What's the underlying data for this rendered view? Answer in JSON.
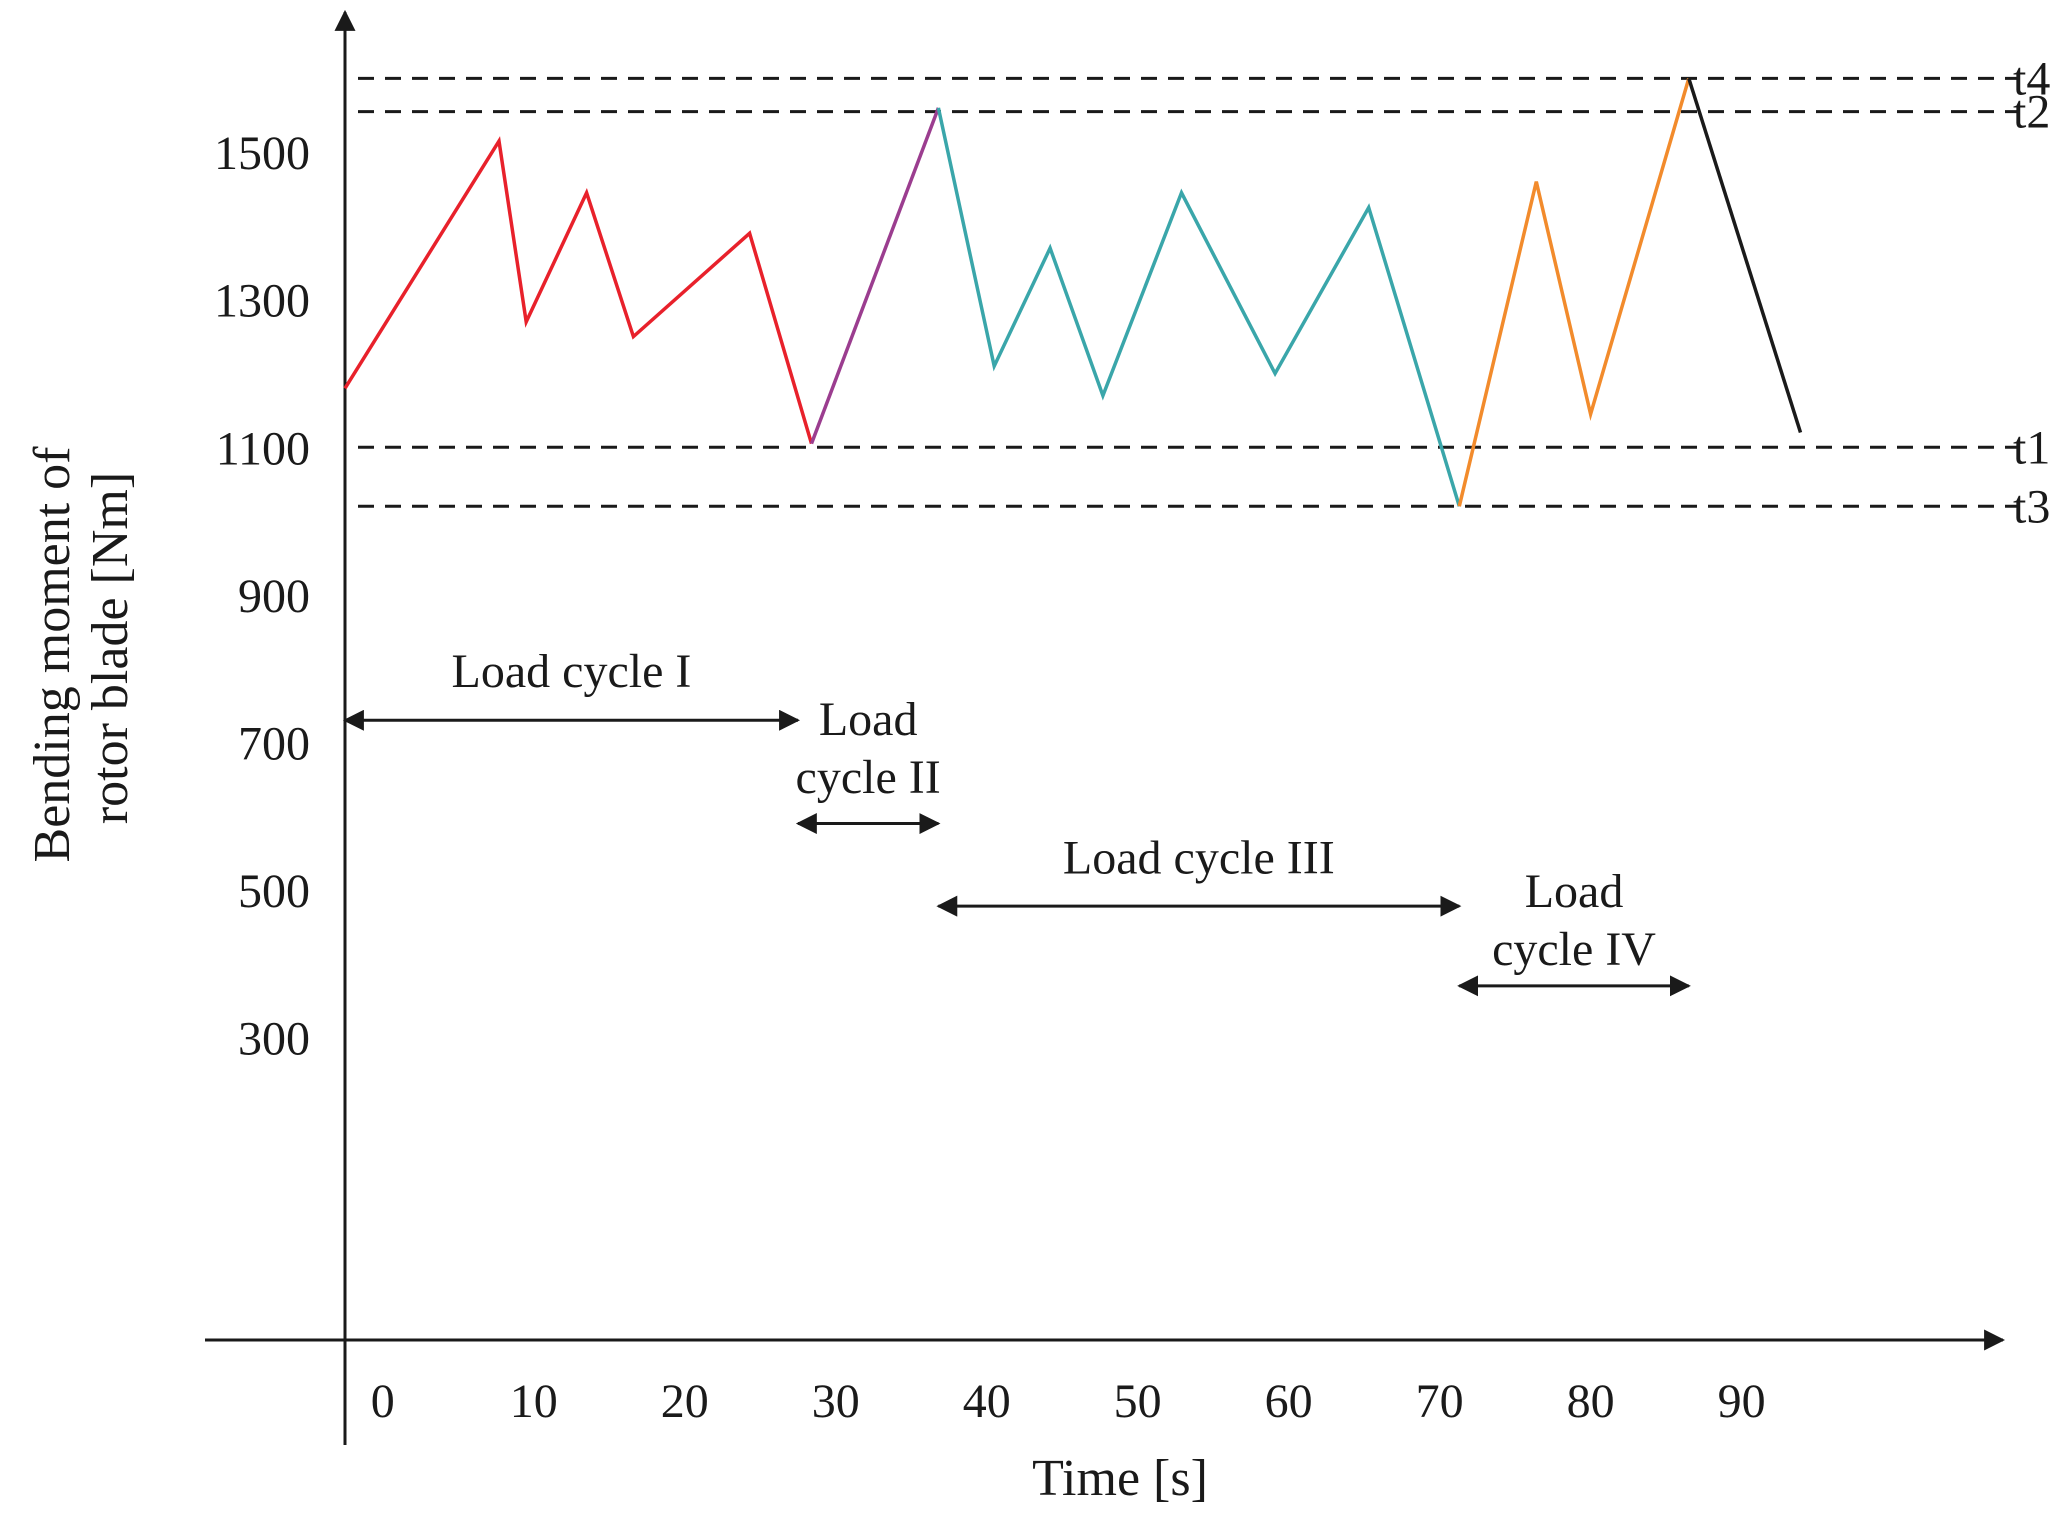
{
  "chart_data": {
    "type": "line",
    "title": "",
    "xlabel": "Time [s]",
    "ylabel": [
      "Bending moment of",
      "rotor blade [Nm]"
    ],
    "xlim": [
      -2.5,
      104
    ],
    "ylim": [
      -110,
      1690
    ],
    "x_ticks": [
      {
        "value": 0,
        "label": "0"
      },
      {
        "value": 10,
        "label": "10"
      },
      {
        "value": 20,
        "label": "20"
      },
      {
        "value": 30,
        "label": "30"
      },
      {
        "value": 40,
        "label": "40"
      },
      {
        "value": 50,
        "label": "50"
      },
      {
        "value": 60,
        "label": "60"
      },
      {
        "value": 70,
        "label": "70"
      },
      {
        "value": 80,
        "label": "80"
      },
      {
        "value": 90,
        "label": "90"
      }
    ],
    "y_ticks": [
      {
        "value": 300,
        "label": "300"
      },
      {
        "value": 500,
        "label": "500"
      },
      {
        "value": 700,
        "label": "700"
      },
      {
        "value": 900,
        "label": "900"
      },
      {
        "value": 1100,
        "label": "1100"
      },
      {
        "value": 1300,
        "label": "1300"
      },
      {
        "value": 1500,
        "label": "1500"
      }
    ],
    "thresholds": [
      {
        "name": "t4",
        "value": 1600
      },
      {
        "name": "t2",
        "value": 1555
      },
      {
        "name": "t1",
        "value": 1100
      },
      {
        "name": "t3",
        "value": 1020
      }
    ],
    "series": [
      {
        "color": "#e8212b",
        "x": [
          -2.5,
          7.7,
          9.5,
          13.5,
          16.6,
          24.3,
          28.4
        ],
        "y": [
          1180,
          1515,
          1270,
          1445,
          1250,
          1390,
          1105
        ]
      },
      {
        "color": "#9b3d8f",
        "x": [
          28.4,
          36.8
        ],
        "y": [
          1105,
          1560
        ]
      },
      {
        "color": "#3aa6aa",
        "x": [
          36.8,
          40.5,
          44.2,
          47.7,
          52.9,
          59.1,
          65.3,
          71.3
        ],
        "y": [
          1560,
          1210,
          1370,
          1170,
          1445,
          1200,
          1425,
          1020
        ]
      },
      {
        "color": "#f28b2c",
        "x": [
          71.3,
          76.4,
          80.0,
          86.5
        ],
        "y": [
          1020,
          1460,
          1145,
          1600
        ]
      },
      {
        "color": "#1a1a1a",
        "x": [
          86.5,
          93.9
        ],
        "y": [
          1600,
          1120
        ]
      }
    ],
    "annotations": [
      {
        "lines": [
          "Load cycle I"
        ],
        "x_start": -2.5,
        "x_end": 27.5,
        "y": 730,
        "text_y": 775
      },
      {
        "lines": [
          "Load",
          "cycle II"
        ],
        "x_start": 27.5,
        "x_end": 36.8,
        "y": 590,
        "text_y": 710
      },
      {
        "lines": [
          "Load cycle III"
        ],
        "x_start": 36.8,
        "x_end": 71.3,
        "y": 478,
        "text_y": 522
      },
      {
        "lines": [
          "Load",
          "cycle IV"
        ],
        "x_start": 71.3,
        "x_end": 86.5,
        "y": 370,
        "text_y": 477
      }
    ]
  }
}
